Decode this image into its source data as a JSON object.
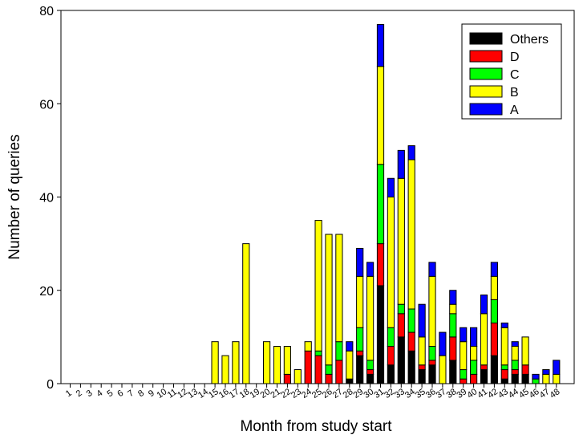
{
  "chart_data": {
    "type": "bar",
    "stacked": true,
    "title": "",
    "xlabel": "Month from study start",
    "ylabel": "Number of queries",
    "ylim": [
      0,
      80
    ],
    "yticks": [
      0,
      20,
      40,
      60,
      80
    ],
    "grid": false,
    "legend_position": "top-right",
    "categories": [
      "1",
      "2",
      "3",
      "4",
      "5",
      "6",
      "7",
      "8",
      "9",
      "10",
      "11",
      "12",
      "13",
      "14",
      "15",
      "16",
      "17",
      "18",
      "19",
      "20",
      "21",
      "22",
      "23",
      "24",
      "25",
      "26",
      "27",
      "28",
      "29",
      "30",
      "31",
      "32",
      "33",
      "34",
      "35",
      "36",
      "37",
      "38",
      "39",
      "40",
      "41",
      "42",
      "43",
      "44",
      "45",
      "46",
      "47",
      "48"
    ],
    "series": [
      {
        "name": "Others",
        "color": "#000000",
        "values": [
          0,
          0,
          0,
          0,
          0,
          0,
          0,
          0,
          0,
          0,
          0,
          0,
          0,
          0,
          0,
          0,
          0,
          0,
          0,
          0,
          0,
          0,
          0,
          0,
          0,
          0,
          0,
          1,
          6,
          2,
          21,
          4,
          10,
          7,
          3,
          4,
          0,
          5,
          0,
          0,
          3,
          6,
          1,
          2,
          2,
          0,
          0,
          0
        ]
      },
      {
        "name": "D",
        "color": "#ff0000",
        "values": [
          0,
          0,
          0,
          0,
          0,
          0,
          0,
          0,
          0,
          0,
          0,
          0,
          0,
          0,
          0,
          0,
          0,
          0,
          0,
          0,
          0,
          2,
          0,
          7,
          6,
          2,
          5,
          0,
          1,
          1,
          9,
          4,
          5,
          4,
          1,
          1,
          0,
          5,
          1,
          2,
          1,
          7,
          2,
          1,
          2,
          0,
          0,
          0
        ]
      },
      {
        "name": "C",
        "color": "#00ff00",
        "values": [
          0,
          0,
          0,
          0,
          0,
          0,
          0,
          0,
          0,
          0,
          0,
          0,
          0,
          0,
          0,
          0,
          0,
          0,
          0,
          0,
          0,
          0,
          0,
          0,
          1,
          2,
          4,
          0,
          5,
          2,
          17,
          4,
          2,
          5,
          0,
          3,
          0,
          5,
          2,
          3,
          0,
          5,
          1,
          2,
          0,
          1,
          0,
          0
        ]
      },
      {
        "name": "B",
        "color": "#ffff00",
        "values": [
          0,
          0,
          0,
          0,
          0,
          0,
          0,
          0,
          0,
          0,
          0,
          0,
          0,
          0,
          9,
          6,
          9,
          30,
          0,
          9,
          8,
          6,
          3,
          2,
          28,
          28,
          23,
          6,
          11,
          18,
          21,
          28,
          27,
          32,
          6,
          15,
          6,
          2,
          6,
          3,
          11,
          5,
          8,
          3,
          6,
          0,
          2,
          2
        ]
      },
      {
        "name": "A",
        "color": "#0000ff",
        "values": [
          0,
          0,
          0,
          0,
          0,
          0,
          0,
          0,
          0,
          0,
          0,
          0,
          0,
          0,
          0,
          0,
          0,
          0,
          0,
          0,
          0,
          0,
          0,
          0,
          0,
          0,
          0,
          2,
          6,
          3,
          9,
          4,
          6,
          3,
          7,
          3,
          5,
          3,
          3,
          4,
          4,
          3,
          1,
          1,
          0,
          1,
          1,
          3
        ]
      }
    ]
  }
}
